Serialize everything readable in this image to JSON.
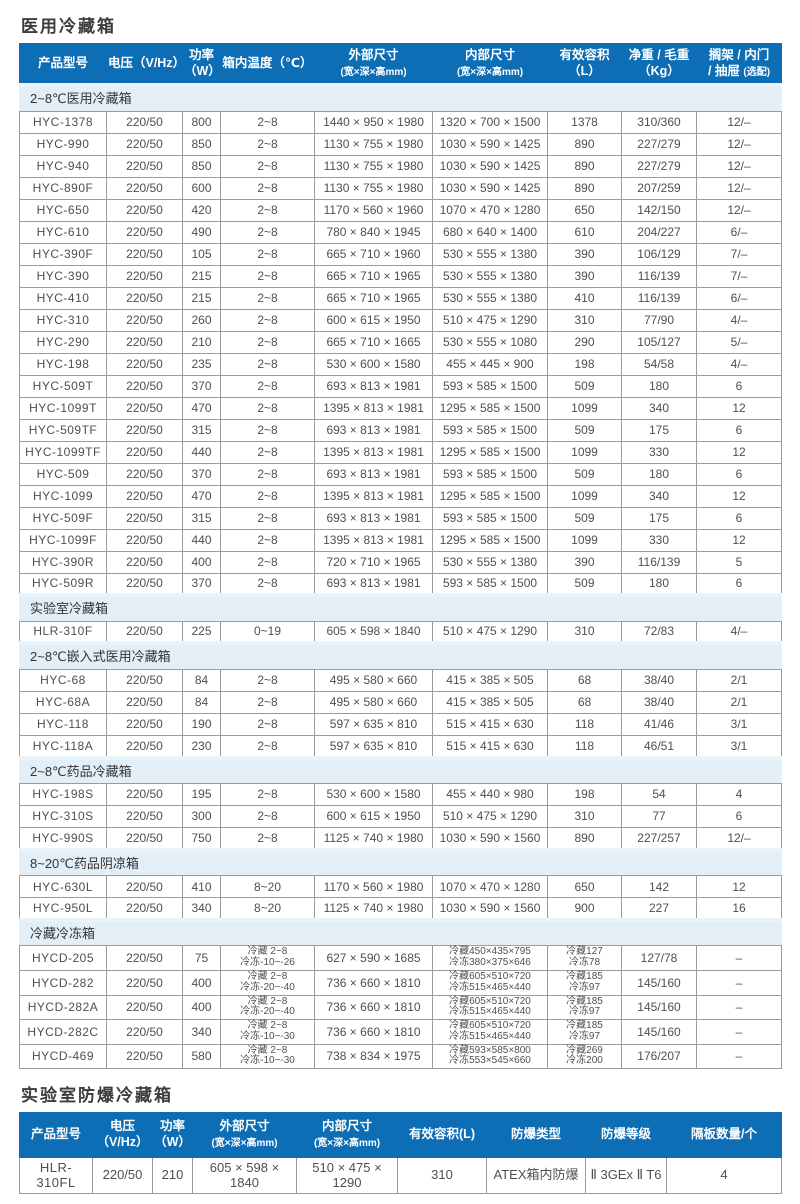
{
  "colors": {
    "header_bg": "#0d6db5",
    "section_bg": "#e3eef7",
    "border_gray": "#9b9b9b",
    "gap_bg": "#e9f3fa"
  },
  "main_table": {
    "title": "医用冷藏箱",
    "columns": [
      {
        "label": "产品型号"
      },
      {
        "label": "电压（V/Hz）"
      },
      {
        "label": "功率\n（W）"
      },
      {
        "label": "箱内温度（℃）"
      },
      {
        "label": "外部尺寸\n",
        "sub": "(宽×深×高mm)"
      },
      {
        "label": "内部尺寸\n",
        "sub": "(宽×深×高mm)"
      },
      {
        "label": "有效容积\n（L）"
      },
      {
        "label": "净重 / 毛重\n（Kg）"
      },
      {
        "label": "搁架 / 内门\n/ 抽屉 ",
        "sub": "(选配)"
      }
    ],
    "sections": [
      {
        "name": "2~8℃医用冷藏箱",
        "rows": [
          [
            "HYC-1378",
            "220/50",
            "800",
            "2~8",
            "1440 × 950 × 1980",
            "1320 × 700 × 1500",
            "1378",
            "310/360",
            "12/–"
          ],
          [
            "HYC-990",
            "220/50",
            "850",
            "2~8",
            "1130 × 755 × 1980",
            "1030 × 590 × 1425",
            "890",
            "227/279",
            "12/–"
          ],
          [
            "HYC-940",
            "220/50",
            "850",
            "2~8",
            "1130 × 755 × 1980",
            "1030 × 590 × 1425",
            "890",
            "227/279",
            "12/–"
          ],
          [
            "HYC-890F",
            "220/50",
            "600",
            "2~8",
            "1130 × 755 × 1980",
            "1030 × 590 × 1425",
            "890",
            "207/259",
            "12/–"
          ],
          [
            "HYC-650",
            "220/50",
            "420",
            "2~8",
            "1170 × 560 × 1960",
            "1070 × 470 × 1280",
            "650",
            "142/150",
            "12/–"
          ],
          [
            "HYC-610",
            "220/50",
            "490",
            "2~8",
            "780 × 840 × 1945",
            "680 × 640 × 1400",
            "610",
            "204/227",
            "6/–"
          ],
          [
            "HYC-390F",
            "220/50",
            "105",
            "2~8",
            "665 × 710 × 1960",
            "530 × 555 × 1380",
            "390",
            "106/129",
            "7/–"
          ],
          [
            "HYC-390",
            "220/50",
            "215",
            "2~8",
            "665 × 710 × 1965",
            "530 × 555 × 1380",
            "390",
            "116/139",
            "7/–"
          ],
          [
            "HYC-410",
            "220/50",
            "215",
            "2~8",
            "665 × 710 × 1965",
            "530 × 555 × 1380",
            "410",
            "116/139",
            "6/–"
          ],
          [
            "HYC-310",
            "220/50",
            "260",
            "2~8",
            "600 × 615 × 1950",
            "510 × 475 × 1290",
            "310",
            "77/90",
            "4/–"
          ],
          [
            "HYC-290",
            "220/50",
            "210",
            "2~8",
            "665 × 710 × 1665",
            "530 × 555 × 1080",
            "290",
            "105/127",
            "5/–"
          ],
          [
            "HYC-198",
            "220/50",
            "235",
            "2~8",
            "530 × 600 × 1580",
            "455 × 445 × 900",
            "198",
            "54/58",
            "4/–"
          ],
          [
            "HYC-509T",
            "220/50",
            "370",
            "2~8",
            "693 × 813 × 1981",
            "593 × 585 × 1500",
            "509",
            "180",
            "6"
          ],
          [
            "HYC-1099T",
            "220/50",
            "470",
            "2~8",
            "1395 × 813 × 1981",
            "1295 × 585 × 1500",
            "1099",
            "340",
            "12"
          ],
          [
            "HYC-509TF",
            "220/50",
            "315",
            "2~8",
            "693 × 813 × 1981",
            "593 × 585 × 1500",
            "509",
            "175",
            "6"
          ],
          [
            "HYC-1099TF",
            "220/50",
            "440",
            "2~8",
            "1395 × 813 × 1981",
            "1295 × 585 × 1500",
            "1099",
            "330",
            "12"
          ],
          [
            "HYC-509",
            "220/50",
            "370",
            "2~8",
            "693 × 813 × 1981",
            "593 × 585 × 1500",
            "509",
            "180",
            "6"
          ],
          [
            "HYC-1099",
            "220/50",
            "470",
            "2~8",
            "1395 × 813 × 1981",
            "1295 × 585 × 1500",
            "1099",
            "340",
            "12"
          ],
          [
            "HYC-509F",
            "220/50",
            "315",
            "2~8",
            "693 × 813 × 1981",
            "593 × 585 × 1500",
            "509",
            "175",
            "6"
          ],
          [
            "HYC-1099F",
            "220/50",
            "440",
            "2~8",
            "1395 × 813 × 1981",
            "1295 × 585 × 1500",
            "1099",
            "330",
            "12"
          ],
          [
            "HYC-390R",
            "220/50",
            "400",
            "2~8",
            "720 × 710 × 1965",
            "530 × 555 × 1380",
            "390",
            "116/139",
            "5"
          ],
          [
            "HYC-509R",
            "220/50",
            "370",
            "2~8",
            "693 × 813 × 1981",
            "593 × 585 × 1500",
            "509",
            "180",
            "6"
          ]
        ]
      },
      {
        "name": "实验室冷藏箱",
        "rows": [
          [
            "HLR-310F",
            "220/50",
            "225",
            "0~19",
            "605 × 598 × 1840",
            "510 × 475 × 1290",
            "310",
            "72/83",
            "4/–"
          ]
        ]
      },
      {
        "name": "2~8℃嵌入式医用冷藏箱",
        "rows": [
          [
            "HYC-68",
            "220/50",
            "84",
            "2~8",
            "495 × 580 × 660",
            "415 × 385 × 505",
            "68",
            "38/40",
            "2/1"
          ],
          [
            "HYC-68A",
            "220/50",
            "84",
            "2~8",
            "495 × 580 × 660",
            "415 × 385 × 505",
            "68",
            "38/40",
            "2/1"
          ],
          [
            "HYC-118",
            "220/50",
            "190",
            "2~8",
            "597 × 635 × 810",
            "515 × 415 × 630",
            "118",
            "41/46",
            "3/1"
          ],
          [
            "HYC-118A",
            "220/50",
            "230",
            "2~8",
            "597 × 635 × 810",
            "515 × 415 × 630",
            "118",
            "46/51",
            "3/1"
          ]
        ]
      },
      {
        "name": "2~8℃药品冷藏箱",
        "rows": [
          [
            "HYC-198S",
            "220/50",
            "195",
            "2~8",
            "530 × 600 × 1580",
            "455 × 440 × 980",
            "198",
            "54",
            "4"
          ],
          [
            "HYC-310S",
            "220/50",
            "300",
            "2~8",
            "600 × 615 × 1950",
            "510 × 475 × 1290",
            "310",
            "77",
            "6"
          ],
          [
            "HYC-990S",
            "220/50",
            "750",
            "2~8",
            "1125 × 740 × 1980",
            "1030 × 590 × 1560",
            "890",
            "227/257",
            "12/–"
          ]
        ]
      },
      {
        "name": "8~20℃药品阴凉箱",
        "rows": [
          [
            "HYC-630L",
            "220/50",
            "410",
            "8~20",
            "1170 × 560 × 1980",
            "1070 × 470 × 1280",
            "650",
            "142",
            "12"
          ],
          [
            "HYC-950L",
            "220/50",
            "340",
            "8~20",
            "1125 × 740 × 1980",
            "1030 × 590 × 1560",
            "900",
            "227",
            "16"
          ]
        ]
      },
      {
        "name": "冷藏冷冻箱",
        "rows": [
          [
            "HYCD-205",
            "220/50",
            "75",
            "冷藏 2~8\n冷冻-10~-26",
            "627 × 590 × 1685",
            "冷藏450×435×795\n冷冻380×375×646",
            "冷藏127\n冷冻78",
            "127/78",
            "–"
          ],
          [
            "HYCD-282",
            "220/50",
            "400",
            "冷藏 2~8\n冷冻-20~-40",
            "736 × 660 × 1810",
            "冷藏605×510×720\n冷冻515×465×440",
            "冷藏185\n冷冻97",
            "145/160",
            "–"
          ],
          [
            "HYCD-282A",
            "220/50",
            "400",
            "冷藏 2~8\n冷冻-20~-40",
            "736 × 660 × 1810",
            "冷藏605×510×720\n冷冻515×465×440",
            "冷藏185\n冷冻97",
            "145/160",
            "–"
          ],
          [
            "HYCD-282C",
            "220/50",
            "340",
            "冷藏 2~8\n冷冻-10~-30",
            "736 × 660 × 1810",
            "冷藏605×510×720\n冷冻515×465×440",
            "冷藏185\n冷冻97",
            "145/160",
            "–"
          ],
          [
            "HYCD-469",
            "220/50",
            "580",
            "冷藏 2~8\n冷冻-10~-30",
            "738 × 834 × 1975",
            "冷藏593×585×800\n冷冻553×545×660",
            "冷藏269\n冷冻200",
            "176/207",
            "–"
          ]
        ]
      }
    ]
  },
  "bottom_table": {
    "title": "实验室防爆冷藏箱",
    "columns": [
      {
        "label": "产品型号"
      },
      {
        "label": "电压\n（V/Hz）"
      },
      {
        "label": "功率\n（W）"
      },
      {
        "label": "外部尺寸\n",
        "sub": "(宽×深×高mm)"
      },
      {
        "label": "内部尺寸\n",
        "sub": "(宽×深×高mm)"
      },
      {
        "label": "有效容积(L)"
      },
      {
        "label": "防爆类型"
      },
      {
        "label": "防爆等级"
      },
      {
        "label": "隔板数量/个"
      }
    ],
    "sections": [
      {
        "name": null,
        "rows": [
          [
            "HLR-310FL",
            "220/50",
            "210",
            "605 × 598 × 1840",
            "510 × 475 × 1290",
            "310",
            "ATEX箱内防爆",
            "Ⅱ 3GEx Ⅱ T6",
            "4"
          ]
        ]
      }
    ]
  }
}
